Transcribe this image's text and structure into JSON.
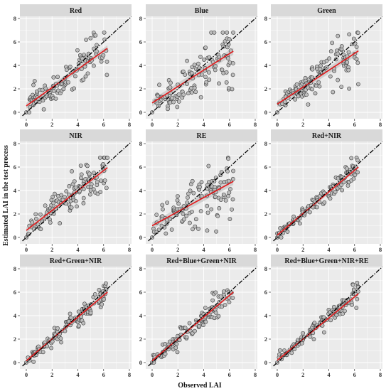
{
  "figure": {
    "xlabel": "Observed LAI",
    "ylabel": "Estimated LAI in the test process"
  },
  "colors": {
    "panel_bg": "#ebebeb",
    "strip_bg": "#d9d9d9",
    "grid": "#ffffff",
    "point_fill": "#bdbdbd",
    "point_stroke": "#3a3a3a",
    "fit_line": "#e31a1c",
    "ci_band": "#b8b8b8",
    "one_to_one": "#000000"
  },
  "chart_data": [
    {
      "type": "scatter",
      "title": "Red",
      "xlim": [
        0,
        8
      ],
      "ylim": [
        0,
        8
      ],
      "xticks": [
        0,
        2,
        4,
        6,
        8
      ],
      "yticks": [
        0,
        2,
        4,
        6,
        8
      ],
      "fit": {
        "intercept": 0.55,
        "slope": 0.78
      },
      "ci_halfwidth": 0.25,
      "noise": 0.75,
      "seed": 11
    },
    {
      "type": "scatter",
      "title": "Blue",
      "xlim": [
        0,
        8
      ],
      "ylim": [
        0,
        8
      ],
      "xticks": [
        0,
        2,
        4,
        6,
        8
      ],
      "yticks": [
        0,
        2,
        4,
        6,
        8
      ],
      "fit": {
        "intercept": 0.8,
        "slope": 0.7
      },
      "ci_halfwidth": 0.3,
      "noise": 0.95,
      "seed": 23
    },
    {
      "type": "scatter",
      "title": "Green",
      "xlim": [
        0,
        8
      ],
      "ylim": [
        0,
        8
      ],
      "xticks": [
        0,
        2,
        4,
        6,
        8
      ],
      "yticks": [
        0,
        2,
        4,
        6,
        8
      ],
      "fit": {
        "intercept": 0.7,
        "slope": 0.72
      },
      "ci_halfwidth": 0.28,
      "noise": 0.8,
      "seed": 37
    },
    {
      "type": "scatter",
      "title": "NIR",
      "xlim": [
        0,
        8
      ],
      "ylim": [
        0,
        8
      ],
      "xticks": [
        0,
        2,
        4,
        6,
        8
      ],
      "yticks": [
        0,
        2,
        4,
        6,
        8
      ],
      "fit": {
        "intercept": 0.6,
        "slope": 0.85
      },
      "ci_halfwidth": 0.25,
      "noise": 0.75,
      "seed": 41
    },
    {
      "type": "scatter",
      "title": "RE",
      "xlim": [
        0,
        8
      ],
      "ylim": [
        0,
        8
      ],
      "xticks": [
        0,
        2,
        4,
        6,
        8
      ],
      "yticks": [
        0,
        2,
        4,
        6,
        8
      ],
      "fit": {
        "intercept": 1.0,
        "slope": 0.6
      },
      "ci_halfwidth": 0.3,
      "noise": 0.95,
      "seed": 53
    },
    {
      "type": "scatter",
      "title": "Red+NIR",
      "xlim": [
        0,
        8
      ],
      "ylim": [
        0,
        8
      ],
      "xticks": [
        0,
        2,
        4,
        6,
        8
      ],
      "yticks": [
        0,
        2,
        4,
        6,
        8
      ],
      "fit": {
        "intercept": 0.2,
        "slope": 0.92
      },
      "ci_halfwidth": 0.15,
      "noise": 0.35,
      "seed": 67
    },
    {
      "type": "scatter",
      "title": "Red+Green+NIR",
      "xlim": [
        0,
        8
      ],
      "ylim": [
        0,
        8
      ],
      "xticks": [
        0,
        2,
        4,
        6,
        8
      ],
      "yticks": [
        0,
        2,
        4,
        6,
        8
      ],
      "fit": {
        "intercept": 0.15,
        "slope": 0.93
      },
      "ci_halfwidth": 0.15,
      "noise": 0.4,
      "seed": 71
    },
    {
      "type": "scatter",
      "title": "Red+Blue+Green+NIR",
      "xlim": [
        0,
        8
      ],
      "ylim": [
        0,
        8
      ],
      "xticks": [
        0,
        2,
        4,
        6,
        8
      ],
      "yticks": [
        0,
        2,
        4,
        6,
        8
      ],
      "fit": {
        "intercept": 0.15,
        "slope": 0.93
      },
      "ci_halfwidth": 0.15,
      "noise": 0.4,
      "seed": 83
    },
    {
      "type": "scatter",
      "title": "Red+Blue+Green+NIR+RE",
      "xlim": [
        0,
        8
      ],
      "ylim": [
        0,
        8
      ],
      "xticks": [
        0,
        2,
        4,
        6,
        8
      ],
      "yticks": [
        0,
        2,
        4,
        6,
        8
      ],
      "fit": {
        "intercept": 0.2,
        "slope": 0.9
      },
      "ci_halfwidth": 0.15,
      "noise": 0.4,
      "seed": 97
    }
  ]
}
